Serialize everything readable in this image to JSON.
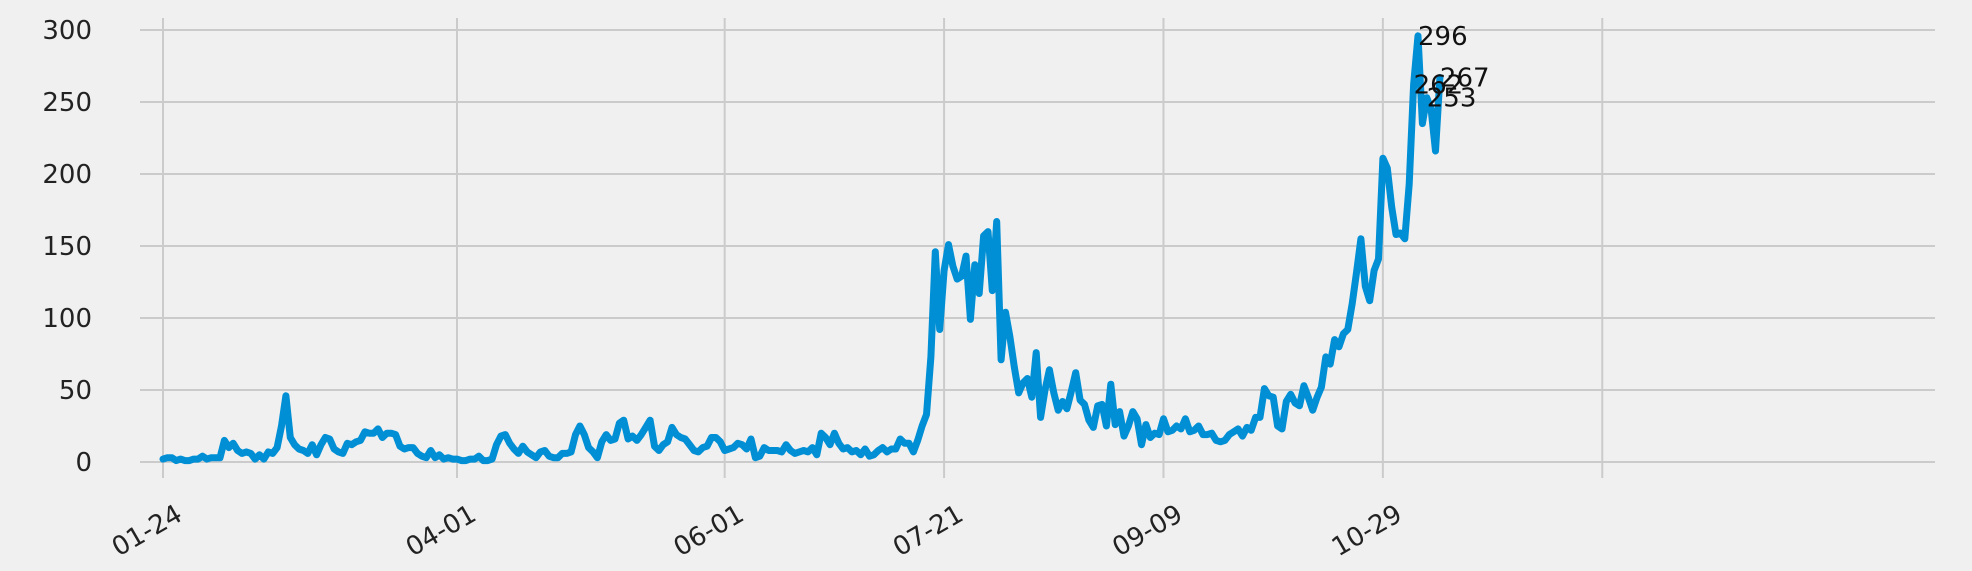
{
  "chart_data": {
    "type": "line",
    "title": "",
    "xlabel": "",
    "ylabel": "",
    "x_ticks": [
      "01-24",
      "04-01",
      "06-01",
      "07-21",
      "09-09",
      "10-29"
    ],
    "y_ticks": [
      "0",
      "50",
      "100",
      "150",
      "200",
      "250",
      "300"
    ],
    "ylim": [
      -10,
      310
    ],
    "grid": true,
    "legend": "none",
    "line_color": "#008fd5",
    "background": "#f0f0f0",
    "grid_color": "#cbcbcb",
    "x_range_days": [
      0,
      365
    ],
    "series": [
      {
        "name": "",
        "points": [
          [
            0,
            2
          ],
          [
            1,
            3
          ],
          [
            2,
            3
          ],
          [
            3,
            1
          ],
          [
            4,
            2
          ],
          [
            5,
            1
          ],
          [
            6,
            1
          ],
          [
            7,
            2
          ],
          [
            8,
            2
          ],
          [
            9,
            4
          ],
          [
            10,
            2
          ],
          [
            11,
            3
          ],
          [
            12,
            3
          ],
          [
            13,
            3
          ],
          [
            14,
            15
          ],
          [
            15,
            10
          ],
          [
            16,
            13
          ],
          [
            17,
            8
          ],
          [
            18,
            6
          ],
          [
            19,
            7
          ],
          [
            20,
            6
          ],
          [
            21,
            2
          ],
          [
            22,
            5
          ],
          [
            23,
            2
          ],
          [
            24,
            7
          ],
          [
            25,
            6
          ],
          [
            26,
            10
          ],
          [
            27,
            25
          ],
          [
            28,
            46
          ],
          [
            29,
            17
          ],
          [
            30,
            12
          ],
          [
            31,
            9
          ],
          [
            32,
            8
          ],
          [
            33,
            6
          ],
          [
            34,
            12
          ],
          [
            35,
            5
          ],
          [
            36,
            12
          ],
          [
            37,
            17
          ],
          [
            38,
            16
          ],
          [
            39,
            9
          ],
          [
            40,
            7
          ],
          [
            41,
            6
          ],
          [
            42,
            13
          ],
          [
            43,
            12
          ],
          [
            44,
            14
          ],
          [
            45,
            15
          ],
          [
            46,
            21
          ],
          [
            47,
            20
          ],
          [
            48,
            20
          ],
          [
            49,
            23
          ],
          [
            50,
            17
          ],
          [
            51,
            20
          ],
          [
            52,
            20
          ],
          [
            53,
            19
          ],
          [
            54,
            11
          ],
          [
            55,
            9
          ],
          [
            56,
            10
          ],
          [
            57,
            10
          ],
          [
            58,
            6
          ],
          [
            59,
            4
          ],
          [
            60,
            3
          ],
          [
            61,
            8
          ],
          [
            62,
            3
          ],
          [
            63,
            5
          ],
          [
            64,
            2
          ],
          [
            65,
            3
          ],
          [
            66,
            2
          ],
          [
            67,
            2
          ],
          [
            68,
            1
          ],
          [
            69,
            1
          ],
          [
            70,
            2
          ],
          [
            71,
            2
          ],
          [
            72,
            4
          ],
          [
            73,
            1
          ],
          [
            74,
            1
          ],
          [
            75,
            2
          ],
          [
            76,
            12
          ],
          [
            77,
            18
          ],
          [
            78,
            19
          ],
          [
            79,
            13
          ],
          [
            80,
            9
          ],
          [
            81,
            6
          ],
          [
            82,
            11
          ],
          [
            83,
            7
          ],
          [
            84,
            5
          ],
          [
            85,
            3
          ],
          [
            86,
            7
          ],
          [
            87,
            8
          ],
          [
            88,
            4
          ],
          [
            89,
            3
          ],
          [
            90,
            3
          ],
          [
            91,
            6
          ],
          [
            92,
            6
          ],
          [
            93,
            7
          ],
          [
            94,
            19
          ],
          [
            95,
            25
          ],
          [
            96,
            19
          ],
          [
            97,
            10
          ],
          [
            98,
            7
          ],
          [
            99,
            3
          ],
          [
            100,
            14
          ],
          [
            101,
            19
          ],
          [
            102,
            15
          ],
          [
            103,
            16
          ],
          [
            104,
            27
          ],
          [
            105,
            29
          ],
          [
            106,
            16
          ],
          [
            107,
            18
          ],
          [
            108,
            15
          ],
          [
            109,
            19
          ],
          [
            110,
            24
          ],
          [
            111,
            29
          ],
          [
            112,
            11
          ],
          [
            113,
            8
          ],
          [
            114,
            12
          ],
          [
            115,
            14
          ],
          [
            116,
            24
          ],
          [
            117,
            19
          ],
          [
            118,
            17
          ],
          [
            119,
            16
          ],
          [
            120,
            12
          ],
          [
            121,
            8
          ],
          [
            122,
            7
          ],
          [
            123,
            10
          ],
          [
            124,
            11
          ],
          [
            125,
            17
          ],
          [
            126,
            17
          ],
          [
            127,
            14
          ],
          [
            128,
            8
          ],
          [
            129,
            9
          ],
          [
            130,
            10
          ],
          [
            131,
            13
          ],
          [
            132,
            12
          ],
          [
            133,
            9
          ],
          [
            134,
            16
          ],
          [
            135,
            3
          ],
          [
            136,
            4
          ],
          [
            137,
            10
          ],
          [
            138,
            8
          ],
          [
            139,
            8
          ],
          [
            140,
            8
          ],
          [
            141,
            7
          ],
          [
            142,
            12
          ],
          [
            143,
            8
          ],
          [
            144,
            6
          ],
          [
            145,
            7
          ],
          [
            146,
            8
          ],
          [
            147,
            7
          ],
          [
            148,
            10
          ],
          [
            149,
            5
          ],
          [
            150,
            20
          ],
          [
            151,
            17
          ],
          [
            152,
            12
          ],
          [
            153,
            20
          ],
          [
            154,
            13
          ],
          [
            155,
            9
          ],
          [
            156,
            10
          ],
          [
            157,
            7
          ],
          [
            158,
            8
          ],
          [
            159,
            5
          ],
          [
            160,
            9
          ],
          [
            161,
            4
          ],
          [
            162,
            5
          ],
          [
            163,
            8
          ],
          [
            164,
            10
          ],
          [
            165,
            7
          ],
          [
            166,
            9
          ],
          [
            167,
            9
          ],
          [
            168,
            16
          ],
          [
            169,
            13
          ],
          [
            170,
            13
          ],
          [
            171,
            7
          ],
          [
            172,
            15
          ],
          [
            173,
            25
          ],
          [
            174,
            33
          ],
          [
            175,
            73
          ],
          [
            176,
            146
          ],
          [
            177,
            92
          ],
          [
            178,
            133
          ],
          [
            179,
            151
          ],
          [
            180,
            136
          ],
          [
            181,
            127
          ],
          [
            182,
            129
          ],
          [
            183,
            143
          ],
          [
            184,
            99
          ],
          [
            185,
            137
          ],
          [
            186,
            117
          ],
          [
            187,
            157
          ],
          [
            188,
            160
          ],
          [
            189,
            119
          ],
          [
            190,
            167
          ],
          [
            191,
            71
          ],
          [
            192,
            104
          ],
          [
            193,
            87
          ],
          [
            194,
            66
          ],
          [
            195,
            48
          ],
          [
            196,
            55
          ],
          [
            197,
            58
          ],
          [
            198,
            45
          ],
          [
            199,
            76
          ],
          [
            200,
            31
          ],
          [
            201,
            50
          ],
          [
            202,
            64
          ],
          [
            203,
            48
          ],
          [
            204,
            36
          ],
          [
            205,
            42
          ],
          [
            206,
            37
          ],
          [
            207,
            49
          ],
          [
            208,
            62
          ],
          [
            209,
            43
          ],
          [
            210,
            40
          ],
          [
            211,
            29
          ],
          [
            212,
            24
          ],
          [
            213,
            39
          ],
          [
            214,
            40
          ],
          [
            215,
            25
          ],
          [
            216,
            54
          ],
          [
            217,
            26
          ],
          [
            218,
            35
          ],
          [
            219,
            18
          ],
          [
            220,
            25
          ],
          [
            221,
            35
          ],
          [
            222,
            30
          ],
          [
            223,
            12
          ],
          [
            224,
            26
          ],
          [
            225,
            17
          ],
          [
            226,
            20
          ],
          [
            227,
            19
          ],
          [
            228,
            30
          ],
          [
            229,
            21
          ],
          [
            230,
            22
          ],
          [
            231,
            25
          ],
          [
            232,
            23
          ],
          [
            233,
            30
          ],
          [
            234,
            21
          ],
          [
            235,
            22
          ],
          [
            236,
            25
          ],
          [
            237,
            19
          ],
          [
            238,
            19
          ],
          [
            239,
            20
          ],
          [
            240,
            15
          ],
          [
            241,
            14
          ],
          [
            242,
            15
          ],
          [
            243,
            19
          ],
          [
            244,
            21
          ],
          [
            245,
            23
          ],
          [
            246,
            18
          ],
          [
            247,
            24
          ],
          [
            248,
            22
          ],
          [
            249,
            31
          ],
          [
            250,
            31
          ],
          [
            251,
            51
          ],
          [
            252,
            46
          ],
          [
            253,
            45
          ],
          [
            254,
            25
          ],
          [
            255,
            23
          ],
          [
            256,
            42
          ],
          [
            257,
            47
          ],
          [
            258,
            41
          ],
          [
            259,
            39
          ],
          [
            260,
            53
          ],
          [
            261,
            45
          ],
          [
            262,
            36
          ],
          [
            263,
            45
          ],
          [
            264,
            52
          ],
          [
            265,
            73
          ],
          [
            266,
            68
          ],
          [
            267,
            85
          ],
          [
            268,
            80
          ],
          [
            269,
            89
          ],
          [
            270,
            92
          ],
          [
            271,
            110
          ],
          [
            272,
            132
          ],
          [
            273,
            155
          ],
          [
            274,
            122
          ],
          [
            275,
            112
          ],
          [
            276,
            133
          ],
          [
            277,
            141
          ],
          [
            278,
            211
          ],
          [
            279,
            204
          ],
          [
            280,
            177
          ],
          [
            281,
            158
          ],
          [
            282,
            159
          ],
          [
            283,
            155
          ],
          [
            284,
            193
          ],
          [
            285,
            262
          ],
          [
            286,
            296
          ],
          [
            287,
            235
          ],
          [
            288,
            253
          ],
          [
            289,
            245
          ],
          [
            290,
            216
          ],
          [
            291,
            267
          ]
        ]
      }
    ],
    "annotations": [
      {
        "text": "296",
        "x": 286,
        "y": 296
      },
      {
        "text": "262",
        "x": 285,
        "y": 262
      },
      {
        "text": "267",
        "x": 291,
        "y": 267
      },
      {
        "text": "253",
        "x": 288,
        "y": 253
      }
    ]
  }
}
